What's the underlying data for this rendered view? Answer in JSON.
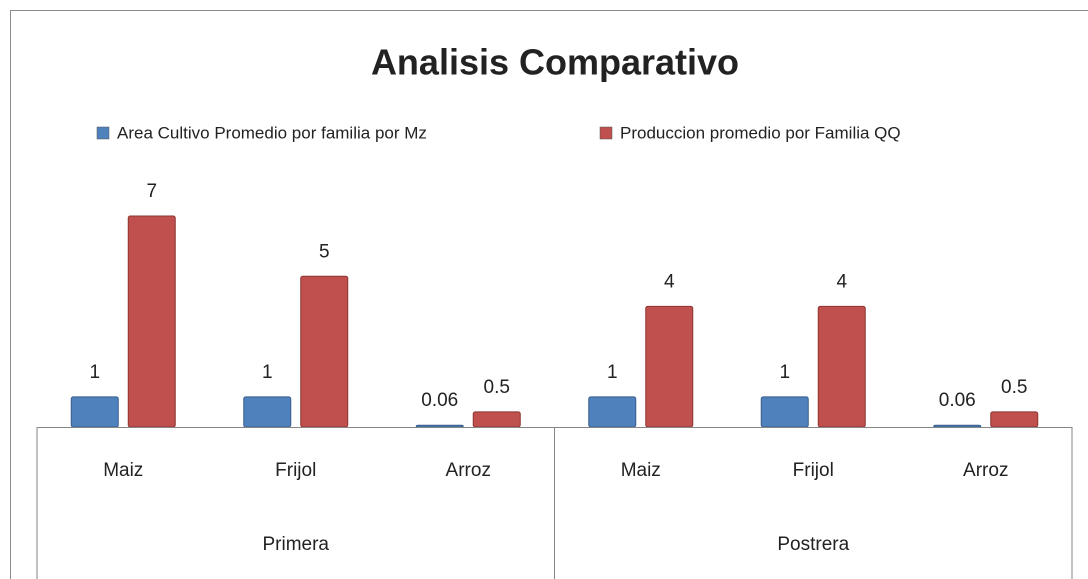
{
  "chart_data": {
    "type": "bar",
    "title": "Analisis Comparativo",
    "groups": [
      "Primera",
      "Postrera"
    ],
    "categories": [
      "Maiz",
      "Frijol",
      "Arroz",
      "Maiz",
      "Frijol",
      "Arroz"
    ],
    "series": [
      {
        "name": "Area Cultivo Promedio por familia por Mz",
        "color": "#4f81bd",
        "values": [
          1,
          1,
          0.06,
          1,
          1,
          0.06
        ]
      },
      {
        "name": "Produccion promedio por Familia QQ",
        "color": "#c0504d",
        "values": [
          7,
          5,
          0.5,
          4,
          4,
          0.5
        ]
      }
    ],
    "legend": "top"
  }
}
